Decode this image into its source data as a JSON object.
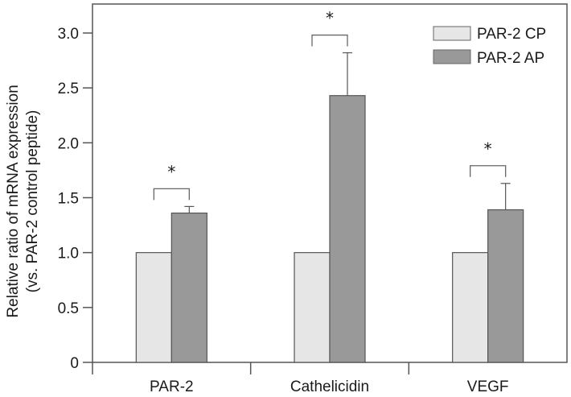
{
  "chart_data": {
    "type": "bar",
    "title": "",
    "xlabel": "",
    "ylabel": "Relative ratio of mRNA expression",
    "ylabel_line2": "(vs. PAR-2 control peptide)",
    "ylim": [
      0,
      3.0
    ],
    "yticks": [
      0,
      0.5,
      1.0,
      1.5,
      2.0,
      2.5,
      3.0
    ],
    "ytick_labels": [
      "0",
      "0.5",
      "1.0",
      "1.5",
      "2.0",
      "2.5",
      "3.0"
    ],
    "categories": [
      "PAR-2",
      "Cathelicidin",
      "VEGF"
    ],
    "series": [
      {
        "name": "PAR-2 CP",
        "color": "#e6e6e6",
        "values": [
          1.0,
          1.0,
          1.0
        ],
        "error_upper": [
          0,
          0,
          0
        ]
      },
      {
        "name": "PAR-2 AP",
        "color": "#999999",
        "values": [
          1.36,
          2.43,
          1.39
        ],
        "error_upper": [
          0.06,
          0.39,
          0.24
        ]
      }
    ],
    "significance": [
      {
        "category": "PAR-2",
        "label": "*"
      },
      {
        "category": "Cathelicidin",
        "label": "*"
      },
      {
        "category": "VEGF",
        "label": "*"
      }
    ],
    "legend": {
      "placement": "top-right",
      "entries": [
        "PAR-2 CP",
        "PAR-2 AP"
      ]
    },
    "grid": false
  }
}
